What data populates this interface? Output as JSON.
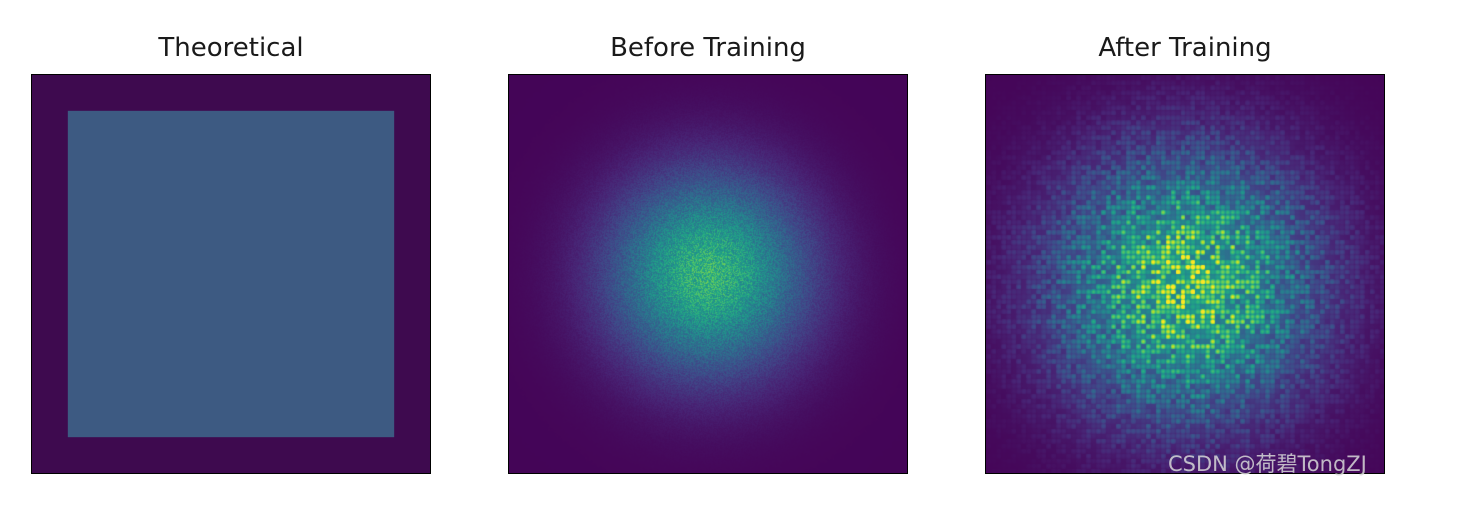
{
  "chart_data": [
    {
      "type": "heatmap",
      "title": "Theoretical",
      "colormap": "viridis",
      "background_value": 0.0,
      "pattern": "uniform square",
      "square_extent": [
        0.09,
        0.91
      ],
      "square_value": 0.32,
      "grid": false,
      "axes_ticks": false
    },
    {
      "type": "heatmap",
      "title": "Before Training",
      "colormap": "viridis",
      "pattern": "gaussian spot",
      "center": [
        0.5,
        0.5
      ],
      "peak_value": 0.65,
      "spread": 0.17,
      "speckle": "fine",
      "grid": false,
      "axes_ticks": false
    },
    {
      "type": "heatmap",
      "title": "After Training",
      "colormap": "viridis",
      "pattern": "speckled spot",
      "center": [
        0.5,
        0.53
      ],
      "peak_value": 0.95,
      "spread": 0.22,
      "speckle": "coarse",
      "grid": false,
      "axes_ticks": false
    }
  ],
  "watermark": "CSDN @荷碧TongZJ",
  "colors": {
    "viridis_dark": "#3e0a4f",
    "theoretical_square": "#3d5a82",
    "frame": "#000000"
  }
}
